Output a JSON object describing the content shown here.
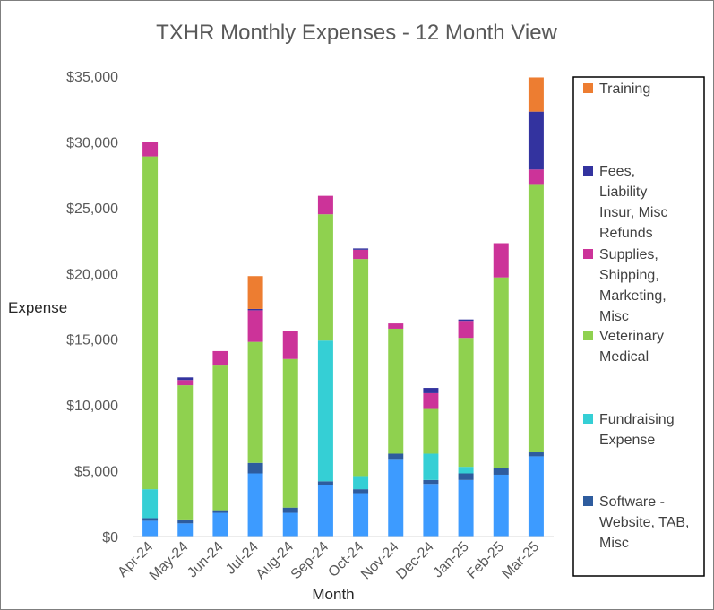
{
  "chart_data": {
    "type": "bar",
    "stacked": true,
    "title": "TXHR Monthly Expenses - 12 Month View",
    "xlabel": "Month",
    "ylabel": "Expense",
    "ylim": [
      0,
      35000
    ],
    "yticks": [
      0,
      5000,
      10000,
      15000,
      20000,
      25000,
      30000,
      35000
    ],
    "ytick_labels": [
      "$0",
      "$5,000",
      "$10,000",
      "$15,000",
      "$20,000",
      "$25,000",
      "$30,000",
      "$35,000"
    ],
    "grid": false,
    "legend_position": "right",
    "categories": [
      "Apr-24",
      "May-24",
      "Jun-24",
      "Jul-24",
      "Aug-24",
      "Sep-24",
      "Oct-24",
      "Nov-24",
      "Dec-24",
      "Jan-25",
      "Feb-25",
      "Mar-25"
    ],
    "series": [
      {
        "color": "#3d9bff",
        "values": [
          1200,
          1000,
          1800,
          4800,
          1800,
          3900,
          3300,
          5900,
          4000,
          4300,
          4700,
          6100
        ]
      },
      {
        "name": "Software - Website, TAB, Misc",
        "color": "#2e5c9e",
        "values": [
          200,
          300,
          200,
          800,
          400,
          300,
          300,
          400,
          300,
          500,
          500,
          300
        ]
      },
      {
        "name": "Fundraising Expense",
        "color": "#35cfd5",
        "values": [
          2200,
          0,
          0,
          0,
          0,
          10700,
          1000,
          0,
          2000,
          500,
          0,
          0
        ]
      },
      {
        "name": "Veterinary Medical",
        "color": "#8fd14f",
        "values": [
          25300,
          10200,
          11000,
          9200,
          11300,
          9600,
          16500,
          9500,
          3400,
          9800,
          14500,
          20400
        ]
      },
      {
        "name": "Supplies, Shipping, Marketing, Misc",
        "color": "#cc3399",
        "values": [
          1100,
          400,
          1100,
          2400,
          2100,
          1400,
          700,
          400,
          1200,
          1300,
          2600,
          1100
        ]
      },
      {
        "name": "Fees, Liability Insur, Misc Refunds",
        "color": "#33339f",
        "values": [
          0,
          200,
          0,
          100,
          0,
          0,
          100,
          0,
          400,
          100,
          0,
          4400
        ]
      },
      {
        "name": "Training",
        "color": "#ed7d31",
        "values": [
          0,
          0,
          0,
          2500,
          0,
          0,
          0,
          0,
          0,
          0,
          0,
          2600
        ]
      }
    ]
  }
}
